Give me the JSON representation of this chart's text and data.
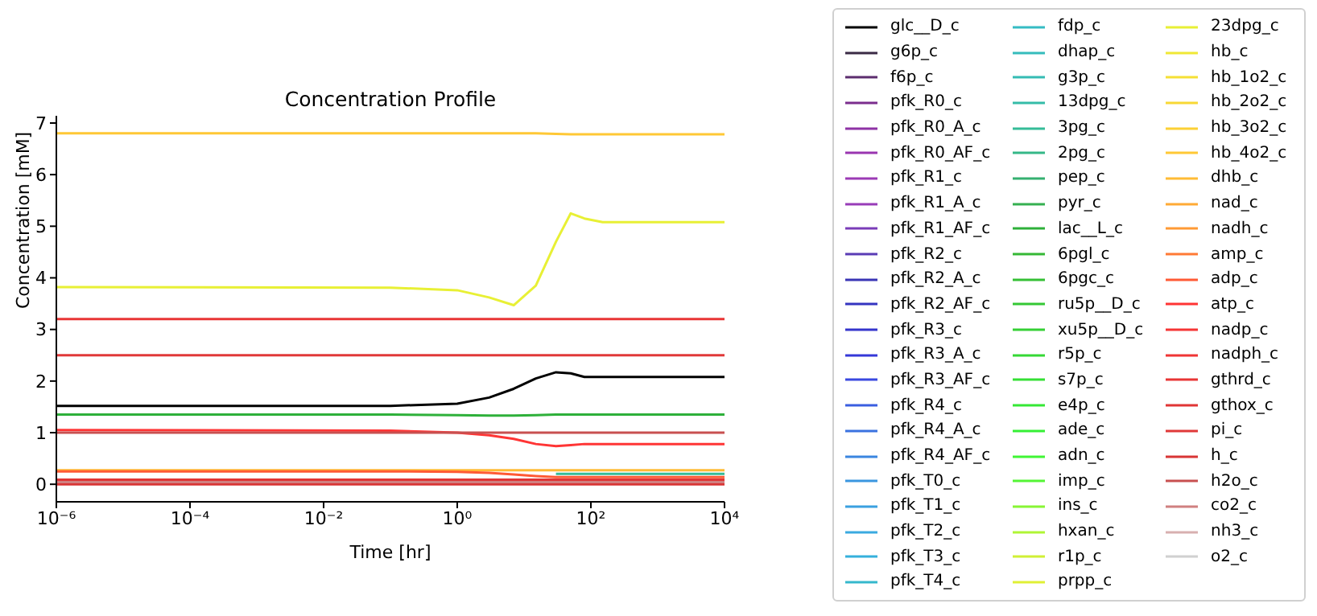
{
  "chart_data": {
    "type": "line",
    "title": "Concentration Profile",
    "xlabel": "Time [hr]",
    "ylabel": "Concentration [mM]",
    "log": "x",
    "legend": "right",
    "grid": false,
    "xlim": [
      1e-06,
      10000
    ],
    "xticks": [
      {
        "value": 1e-06,
        "label": "10⁻⁶"
      },
      {
        "value": 0.0001,
        "label": "10⁻⁴"
      },
      {
        "value": 0.01,
        "label": "10⁻²"
      },
      {
        "value": 1,
        "label": "10⁰"
      },
      {
        "value": 100,
        "label": "10²"
      },
      {
        "value": 10000,
        "label": "10⁴"
      }
    ],
    "ylim": [
      -0.34,
      7.14
    ],
    "yticks": [
      0,
      1,
      2,
      3,
      4,
      5,
      6,
      7
    ],
    "x": [
      1e-06,
      0.1,
      1,
      3,
      7,
      15,
      30,
      50,
      80,
      150,
      10000
    ],
    "series": [
      {
        "name": "glc__D_c",
        "color": "#000000",
        "values": [
          1.52,
          1.52,
          1.56,
          1.68,
          1.85,
          2.05,
          2.17,
          2.15,
          2.08,
          2.08,
          2.08
        ]
      },
      {
        "name": "g6p_c",
        "color": "#3b2a45",
        "values": [
          null,
          null,
          null,
          null,
          null,
          null,
          null,
          null,
          null,
          null,
          null
        ]
      },
      {
        "name": "f6p_c",
        "color": "#5c2d6e",
        "values": [
          null,
          null,
          null,
          null,
          null,
          null,
          null,
          null,
          null,
          null,
          null
        ]
      },
      {
        "name": "pfk_R0_c",
        "color": "#7b2d8e",
        "values": [
          null,
          null,
          null,
          null,
          null,
          null,
          null,
          null,
          null,
          null,
          null
        ]
      },
      {
        "name": "pfk_R0_A_c",
        "color": "#8e32a5",
        "values": [
          null,
          null,
          null,
          null,
          null,
          null,
          null,
          null,
          null,
          null,
          null
        ]
      },
      {
        "name": "pfk_R0_AF_c",
        "color": "#9a35b0",
        "values": [
          null,
          null,
          null,
          null,
          null,
          null,
          null,
          null,
          null,
          null,
          null
        ]
      },
      {
        "name": "pfk_R1_c",
        "color": "#9b3ab5",
        "values": [
          null,
          null,
          null,
          null,
          null,
          null,
          null,
          null,
          null,
          null,
          null
        ]
      },
      {
        "name": "pfk_R1_A_c",
        "color": "#983cb8",
        "values": [
          null,
          null,
          null,
          null,
          null,
          null,
          null,
          null,
          null,
          null,
          null
        ]
      },
      {
        "name": "pfk_R1_AF_c",
        "color": "#7a3cb8",
        "values": [
          null,
          null,
          null,
          null,
          null,
          null,
          null,
          null,
          null,
          null,
          null
        ]
      },
      {
        "name": "pfk_R2_c",
        "color": "#5a3cb5",
        "values": [
          null,
          null,
          null,
          null,
          null,
          null,
          null,
          null,
          null,
          null,
          null
        ]
      },
      {
        "name": "pfk_R2_A_c",
        "color": "#3a35b5",
        "values": [
          null,
          null,
          null,
          null,
          null,
          null,
          null,
          null,
          null,
          null,
          null
        ]
      },
      {
        "name": "pfk_R2_AF_c",
        "color": "#3535c0",
        "values": [
          null,
          null,
          null,
          null,
          null,
          null,
          null,
          null,
          null,
          null,
          null
        ]
      },
      {
        "name": "pfk_R3_c",
        "color": "#3535cc",
        "values": [
          null,
          null,
          null,
          null,
          null,
          null,
          null,
          null,
          null,
          null,
          null
        ]
      },
      {
        "name": "pfk_R3_A_c",
        "color": "#3538d8",
        "values": [
          null,
          null,
          null,
          null,
          null,
          null,
          null,
          null,
          null,
          null,
          null
        ]
      },
      {
        "name": "pfk_R3_AF_c",
        "color": "#3a48e0",
        "values": [
          null,
          null,
          null,
          null,
          null,
          null,
          null,
          null,
          null,
          null,
          null
        ]
      },
      {
        "name": "pfk_R4_c",
        "color": "#3a5ee0",
        "values": [
          null,
          null,
          null,
          null,
          null,
          null,
          null,
          null,
          null,
          null,
          null
        ]
      },
      {
        "name": "pfk_R4_A_c",
        "color": "#3a72e0",
        "values": [
          null,
          null,
          null,
          null,
          null,
          null,
          null,
          null,
          null,
          null,
          null
        ]
      },
      {
        "name": "pfk_R4_AF_c",
        "color": "#3a86e0",
        "values": [
          null,
          null,
          null,
          null,
          null,
          null,
          null,
          null,
          null,
          null,
          null
        ]
      },
      {
        "name": "pfk_T0_c",
        "color": "#3a96e0",
        "values": [
          null,
          null,
          null,
          null,
          null,
          null,
          null,
          null,
          null,
          null,
          null
        ]
      },
      {
        "name": "pfk_T1_c",
        "color": "#3aa0e0",
        "values": [
          null,
          null,
          null,
          null,
          null,
          null,
          null,
          null,
          null,
          null,
          null
        ]
      },
      {
        "name": "pfk_T2_c",
        "color": "#3aaae0",
        "values": [
          null,
          null,
          null,
          null,
          null,
          null,
          null,
          null,
          null,
          null,
          null
        ]
      },
      {
        "name": "pfk_T3_c",
        "color": "#35b0dc",
        "values": [
          null,
          null,
          null,
          null,
          null,
          null,
          null,
          null,
          null,
          null,
          null
        ]
      },
      {
        "name": "pfk_T4_c",
        "color": "#35b8cc",
        "values": [
          null,
          null,
          null,
          null,
          null,
          null,
          null,
          null,
          null,
          null,
          null
        ]
      },
      {
        "name": "fdp_c",
        "color": "#35bcc4",
        "values": [
          null,
          null,
          null,
          null,
          null,
          null,
          null,
          null,
          null,
          null,
          null
        ]
      },
      {
        "name": "dhap_c",
        "color": "#35bcbc",
        "values": [
          null,
          null,
          null,
          null,
          null,
          null,
          null,
          null,
          null,
          null,
          null
        ]
      },
      {
        "name": "g3p_c",
        "color": "#35bcb4",
        "values": [
          null,
          null,
          null,
          null,
          null,
          null,
          null,
          null,
          null,
          null,
          null
        ]
      },
      {
        "name": "13dpg_c",
        "color": "#35bca8",
        "values": [
          null,
          null,
          null,
          null,
          null,
          null,
          null,
          null,
          null,
          null,
          null
        ]
      },
      {
        "name": "3pg_c",
        "color": "#35bc98",
        "values": [
          null,
          null,
          null,
          null,
          null,
          null,
          0.2,
          0.2,
          0.2,
          0.2,
          0.2
        ]
      },
      {
        "name": "2pg_c",
        "color": "#35b888",
        "values": [
          null,
          null,
          null,
          null,
          null,
          null,
          null,
          null,
          null,
          null,
          null
        ]
      },
      {
        "name": "pep_c",
        "color": "#35b070",
        "values": [
          null,
          null,
          null,
          null,
          null,
          null,
          null,
          null,
          null,
          null,
          null
        ]
      },
      {
        "name": "pyr_c",
        "color": "#35b050",
        "values": [
          null,
          null,
          null,
          null,
          null,
          null,
          null,
          null,
          null,
          null,
          null
        ]
      },
      {
        "name": "lac__L_c",
        "color": "#2eb03a",
        "values": [
          1.35,
          1.35,
          1.34,
          1.33,
          1.33,
          1.34,
          1.35,
          1.35,
          1.35,
          1.35,
          1.35
        ]
      },
      {
        "name": "6pgl_c",
        "color": "#35b835",
        "values": [
          null,
          null,
          null,
          null,
          null,
          null,
          null,
          null,
          null,
          null,
          null
        ]
      },
      {
        "name": "6pgc_c",
        "color": "#35c035",
        "values": [
          null,
          null,
          null,
          null,
          null,
          null,
          null,
          null,
          null,
          null,
          null
        ]
      },
      {
        "name": "ru5p__D_c",
        "color": "#35c835",
        "values": [
          null,
          null,
          null,
          null,
          null,
          null,
          null,
          null,
          null,
          null,
          null
        ]
      },
      {
        "name": "xu5p__D_c",
        "color": "#35d035",
        "values": [
          null,
          null,
          null,
          null,
          null,
          null,
          null,
          null,
          null,
          null,
          null
        ]
      },
      {
        "name": "r5p_c",
        "color": "#35d835",
        "values": [
          null,
          null,
          null,
          null,
          null,
          null,
          null,
          null,
          null,
          null,
          null
        ]
      },
      {
        "name": "s7p_c",
        "color": "#35e035",
        "values": [
          null,
          null,
          null,
          null,
          null,
          null,
          null,
          null,
          null,
          null,
          null
        ]
      },
      {
        "name": "e4p_c",
        "color": "#35e835",
        "values": [
          null,
          null,
          null,
          null,
          null,
          null,
          null,
          null,
          null,
          null,
          null
        ]
      },
      {
        "name": "ade_c",
        "color": "#35f035",
        "values": [
          null,
          null,
          null,
          null,
          null,
          null,
          null,
          null,
          null,
          null,
          null
        ]
      },
      {
        "name": "adn_c",
        "color": "#40f535",
        "values": [
          null,
          null,
          null,
          null,
          null,
          null,
          null,
          null,
          null,
          null,
          null
        ]
      },
      {
        "name": "imp_c",
        "color": "#55f535",
        "values": [
          null,
          null,
          null,
          null,
          null,
          null,
          null,
          null,
          null,
          null,
          null
        ]
      },
      {
        "name": "ins_c",
        "color": "#88f535",
        "values": [
          null,
          null,
          null,
          null,
          null,
          null,
          null,
          null,
          null,
          null,
          null
        ]
      },
      {
        "name": "hxan_c",
        "color": "#b0f535",
        "values": [
          null,
          null,
          null,
          null,
          null,
          null,
          null,
          null,
          null,
          null,
          null
        ]
      },
      {
        "name": "r1p_c",
        "color": "#d0f035",
        "values": [
          null,
          null,
          null,
          null,
          null,
          null,
          null,
          null,
          null,
          null,
          null
        ]
      },
      {
        "name": "prpp_c",
        "color": "#e0f035",
        "values": [
          null,
          null,
          null,
          null,
          null,
          null,
          null,
          null,
          null,
          null,
          null
        ]
      },
      {
        "name": "23dpg_c",
        "color": "#e8f035",
        "values": [
          3.82,
          3.81,
          3.76,
          3.62,
          3.47,
          3.85,
          4.7,
          5.25,
          5.15,
          5.08,
          5.08
        ]
      },
      {
        "name": "hb_c",
        "color": "#f0e835",
        "values": [
          null,
          null,
          null,
          null,
          null,
          null,
          null,
          null,
          null,
          null,
          null
        ]
      },
      {
        "name": "hb_1o2_c",
        "color": "#f5e035",
        "values": [
          null,
          null,
          null,
          null,
          null,
          null,
          null,
          null,
          null,
          null,
          null
        ]
      },
      {
        "name": "hb_2o2_c",
        "color": "#f8d835",
        "values": [
          null,
          null,
          null,
          null,
          null,
          null,
          null,
          null,
          null,
          null,
          null
        ]
      },
      {
        "name": "hb_3o2_c",
        "color": "#fcd035",
        "values": [
          null,
          null,
          null,
          null,
          null,
          null,
          null,
          null,
          null,
          null,
          null
        ]
      },
      {
        "name": "hb_4o2_c",
        "color": "#ffc835",
        "values": [
          6.8,
          6.8,
          6.8,
          6.8,
          6.8,
          6.8,
          6.79,
          6.78,
          6.78,
          6.78,
          6.78
        ]
      },
      {
        "name": "dhb_c",
        "color": "#ffbb35",
        "values": [
          0.27,
          0.27,
          0.27,
          0.27,
          0.27,
          0.27,
          0.27,
          0.27,
          0.27,
          0.27,
          0.27
        ]
      },
      {
        "name": "nad_c",
        "color": "#ffaa35",
        "values": [
          null,
          null,
          null,
          null,
          null,
          null,
          null,
          null,
          null,
          null,
          null
        ]
      },
      {
        "name": "nadh_c",
        "color": "#ff9a35",
        "values": [
          null,
          null,
          null,
          null,
          null,
          null,
          null,
          null,
          null,
          null,
          null
        ]
      },
      {
        "name": "amp_c",
        "color": "#ff7a35",
        "values": [
          null,
          null,
          null,
          null,
          null,
          null,
          null,
          null,
          null,
          null,
          null
        ]
      },
      {
        "name": "adp_c",
        "color": "#ff5a35",
        "values": [
          0.25,
          0.25,
          0.24,
          0.22,
          0.19,
          0.16,
          0.14,
          0.14,
          0.14,
          0.14,
          0.14
        ]
      },
      {
        "name": "atp_c",
        "color": "#ff3535",
        "values": [
          1.05,
          1.04,
          1.0,
          0.95,
          0.88,
          0.78,
          0.74,
          0.76,
          0.78,
          0.78,
          0.78
        ]
      },
      {
        "name": "nadp_c",
        "color": "#f53535",
        "values": [
          null,
          null,
          null,
          null,
          null,
          null,
          null,
          null,
          null,
          null,
          null
        ]
      },
      {
        "name": "nadph_c",
        "color": "#f03535",
        "values": [
          null,
          null,
          null,
          null,
          null,
          null,
          null,
          null,
          null,
          null,
          null
        ]
      },
      {
        "name": "gthrd_c",
        "color": "#e83535",
        "values": [
          3.2,
          3.2,
          3.2,
          3.2,
          3.2,
          3.2,
          3.2,
          3.2,
          3.2,
          3.2,
          3.2
        ]
      },
      {
        "name": "gthox_c",
        "color": "#e03535",
        "values": [
          0.09,
          0.09,
          0.09,
          0.09,
          0.09,
          0.09,
          0.09,
          0.09,
          0.09,
          0.09,
          0.09
        ]
      },
      {
        "name": "pi_c",
        "color": "#e03838",
        "values": [
          2.5,
          2.5,
          2.5,
          2.5,
          2.5,
          2.5,
          2.5,
          2.5,
          2.5,
          2.5,
          2.5
        ]
      },
      {
        "name": "h_c",
        "color": "#d83535",
        "values": [
          0,
          0,
          0,
          0,
          0,
          0,
          0,
          0,
          0,
          0,
          0
        ]
      },
      {
        "name": "h2o_c",
        "color": "#c85050",
        "values": [
          1.0,
          1.0,
          1.0,
          1.0,
          1.0,
          1.0,
          1.0,
          1.0,
          1.0,
          1.0,
          1.0
        ]
      },
      {
        "name": "co2_c",
        "color": "#d08080",
        "values": [
          0.04,
          0.04,
          0.04,
          0.04,
          0.04,
          0.04,
          0.04,
          0.04,
          0.04,
          0.04,
          0.04
        ]
      },
      {
        "name": "nh3_c",
        "color": "#d8b0b0",
        "values": [
          null,
          null,
          null,
          null,
          null,
          null,
          null,
          null,
          null,
          null,
          null
        ]
      },
      {
        "name": "o2_c",
        "color": "#d0d0d0",
        "values": [
          null,
          null,
          null,
          null,
          null,
          null,
          null,
          null,
          null,
          null,
          null
        ]
      }
    ]
  }
}
